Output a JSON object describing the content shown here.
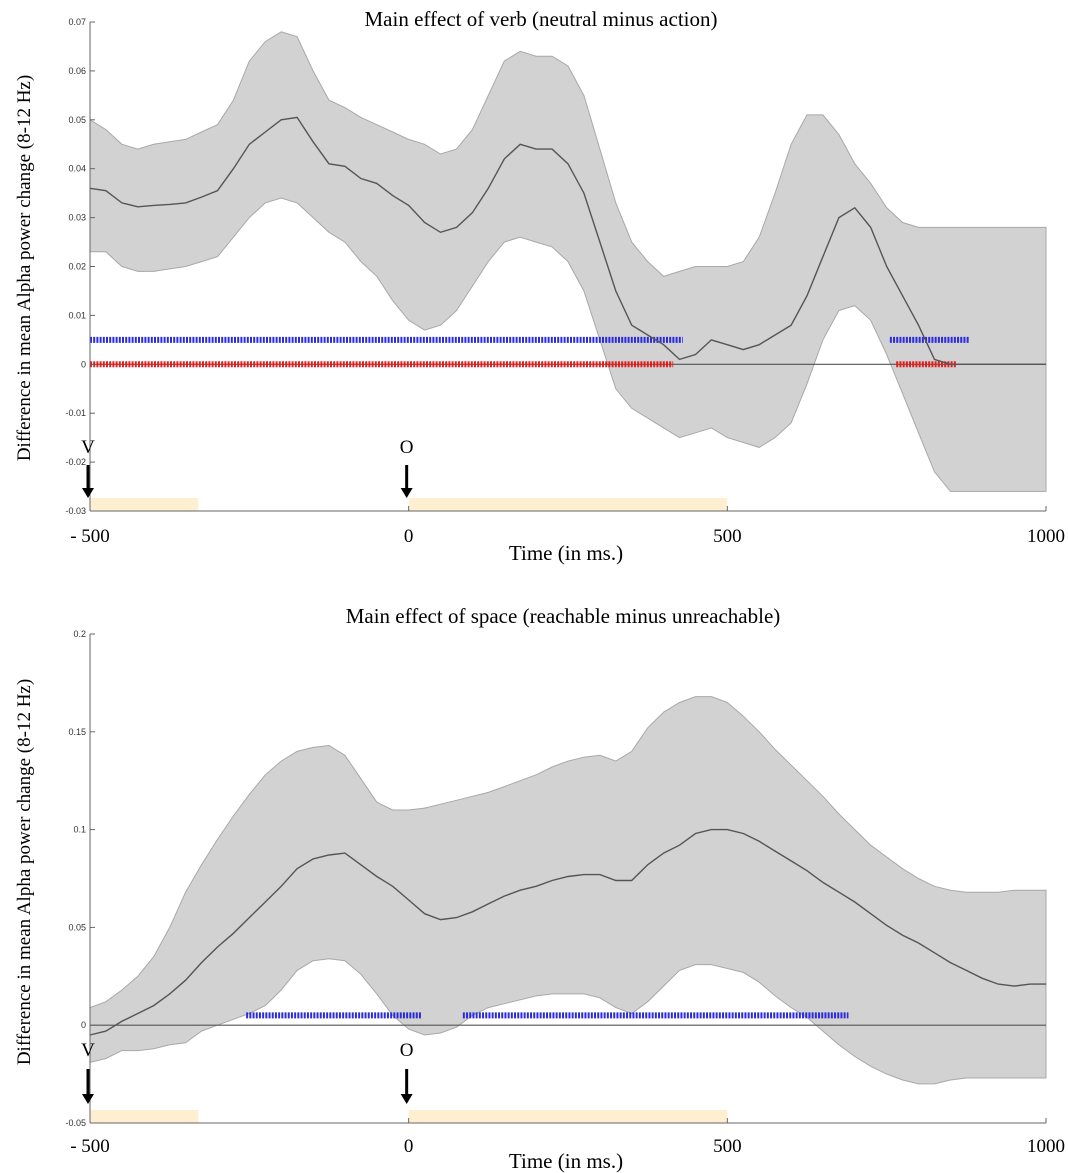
{
  "chart_data": [
    {
      "type": "line",
      "title": "Main effect of verb (neutral minus action)",
      "ylabel": "Difference in mean Alpha power change (8-12 Hz)",
      "xlabel": "Time (in ms.)",
      "xlim": [
        -500,
        1000
      ],
      "ylim": [
        -0.03,
        0.07
      ],
      "xtick_values": [
        -500,
        0,
        500,
        1000
      ],
      "xtick_labels": [
        "- 500",
        "0",
        "500",
        "1000"
      ],
      "ytick_values": [
        -0.03,
        -0.02,
        -0.01,
        0,
        0.01,
        0.02,
        0.03,
        0.04,
        0.05,
        0.06,
        0.07
      ],
      "ytick_labels": [
        "-0.03",
        "-0.02",
        "-0.01",
        "0",
        "0.01",
        "0.02",
        "0.03",
        "0.04",
        "0.05",
        "0.06",
        "0.07"
      ],
      "grid": false,
      "colors": {
        "line": "#555555",
        "band": "#d2d2d2",
        "band_edge": "#a8a8a8",
        "blue": "#2b2bdc",
        "red": "#e21e1e",
        "stimulus": "#fdefcf",
        "zero": "#555555"
      },
      "events": [
        {
          "label": "V",
          "x": -500
        },
        {
          "label": "O",
          "x": 0
        }
      ],
      "stimulus_periods": [
        [
          -500,
          -330
        ],
        [
          0,
          500
        ]
      ],
      "series": [
        {
          "x": [
            -500,
            -475,
            -450,
            -425,
            -400,
            -375,
            -350,
            -325,
            -300,
            -275,
            -250,
            -225,
            -200,
            -175,
            -150,
            -125,
            -100,
            -75,
            -50,
            -25,
            0,
            25,
            50,
            75,
            100,
            125,
            150,
            175,
            200,
            225,
            250,
            275,
            300,
            325,
            350,
            375,
            400,
            425,
            450,
            475,
            500,
            525,
            550,
            575,
            600,
            625,
            650,
            675,
            700,
            725,
            750,
            775,
            800,
            825,
            850,
            875,
            900,
            925,
            950,
            975,
            1000
          ],
          "mean": [
            0.036,
            0.0355,
            0.033,
            0.0322,
            0.0325,
            0.0327,
            0.033,
            0.0342,
            0.0355,
            0.04,
            0.045,
            0.0475,
            0.05,
            0.0505,
            0.0455,
            0.041,
            0.0405,
            0.038,
            0.037,
            0.0345,
            0.0325,
            0.029,
            0.027,
            0.028,
            0.031,
            0.036,
            0.042,
            0.045,
            0.044,
            0.044,
            0.041,
            0.035,
            0.025,
            0.015,
            0.008,
            0.006,
            0.004,
            0.001,
            0.002,
            0.005,
            0.004,
            0.003,
            0.004,
            0.006,
            0.008,
            0.014,
            0.022,
            0.03,
            0.032,
            0.028,
            0.02,
            0.014,
            0.008,
            0.001,
            0.0,
            0.0,
            0.0,
            0.0,
            0.0,
            0.0,
            0.0
          ],
          "upper": [
            0.05,
            0.048,
            0.045,
            0.044,
            0.045,
            0.0455,
            0.046,
            0.0475,
            0.049,
            0.054,
            0.062,
            0.066,
            0.068,
            0.067,
            0.06,
            0.054,
            0.0525,
            0.0505,
            0.049,
            0.0475,
            0.046,
            0.045,
            0.043,
            0.044,
            0.048,
            0.055,
            0.062,
            0.064,
            0.063,
            0.063,
            0.061,
            0.055,
            0.044,
            0.033,
            0.025,
            0.021,
            0.018,
            0.019,
            0.02,
            0.02,
            0.02,
            0.021,
            0.026,
            0.035,
            0.045,
            0.051,
            0.051,
            0.047,
            0.041,
            0.037,
            0.032,
            0.029,
            0.028,
            0.028,
            0.028,
            0.028,
            0.028,
            0.028,
            0.028,
            0.028,
            0.028
          ],
          "lower": [
            0.023,
            0.023,
            0.02,
            0.019,
            0.019,
            0.0195,
            0.02,
            0.021,
            0.022,
            0.026,
            0.03,
            0.033,
            0.034,
            0.033,
            0.03,
            0.027,
            0.025,
            0.021,
            0.018,
            0.013,
            0.009,
            0.007,
            0.008,
            0.011,
            0.016,
            0.021,
            0.025,
            0.026,
            0.025,
            0.024,
            0.021,
            0.015,
            0.005,
            -0.005,
            -0.009,
            -0.011,
            -0.013,
            -0.015,
            -0.014,
            -0.013,
            -0.015,
            -0.016,
            -0.017,
            -0.015,
            -0.012,
            -0.004,
            0.005,
            0.011,
            0.012,
            0.009,
            0.002,
            -0.006,
            -0.014,
            -0.022,
            -0.026,
            -0.026,
            -0.026,
            -0.026,
            -0.026,
            -0.026,
            -0.026
          ]
        }
      ],
      "significance": [
        {
          "color": "blue",
          "y": 0.005,
          "ranges": [
            [
              -500,
              430
            ],
            [
              755,
              880
            ]
          ]
        },
        {
          "color": "red",
          "y": 0.0,
          "ranges": [
            [
              -500,
              415
            ],
            [
              765,
              860
            ]
          ]
        }
      ]
    },
    {
      "type": "line",
      "title": "Main effect of space (reachable minus unreachable)",
      "ylabel": "Difference in mean Alpha power change (8-12 Hz)",
      "xlabel": "Time (in ms.)",
      "xlim": [
        -500,
        1000
      ],
      "ylim": [
        -0.05,
        0.2
      ],
      "xtick_values": [
        -500,
        0,
        500,
        1000
      ],
      "xtick_labels": [
        "- 500",
        "0",
        "500",
        "1000"
      ],
      "ytick_values": [
        -0.05,
        0,
        0.05,
        0.1,
        0.15,
        0.2
      ],
      "ytick_labels": [
        "-0.05",
        "0",
        "0.05",
        "0.1",
        "0.15",
        "0.2"
      ],
      "grid": false,
      "colors": {
        "line": "#555555",
        "band": "#d2d2d2",
        "band_edge": "#a8a8a8",
        "blue": "#2b2bdc",
        "stimulus": "#fdefcf",
        "zero": "#555555"
      },
      "events": [
        {
          "label": "V",
          "x": -500
        },
        {
          "label": "O",
          "x": 0
        }
      ],
      "stimulus_periods": [
        [
          -500,
          -330
        ],
        [
          0,
          500
        ]
      ],
      "series": [
        {
          "x": [
            -500,
            -475,
            -450,
            -425,
            -400,
            -375,
            -350,
            -325,
            -300,
            -275,
            -250,
            -225,
            -200,
            -175,
            -150,
            -125,
            -100,
            -75,
            -50,
            -25,
            0,
            25,
            50,
            75,
            100,
            125,
            150,
            175,
            200,
            225,
            250,
            275,
            300,
            325,
            350,
            375,
            400,
            425,
            450,
            475,
            500,
            525,
            550,
            575,
            600,
            625,
            650,
            675,
            700,
            725,
            750,
            775,
            800,
            825,
            850,
            875,
            900,
            925,
            950,
            975,
            1000
          ],
          "mean": [
            -0.005,
            -0.003,
            0.002,
            0.006,
            0.01,
            0.016,
            0.023,
            0.032,
            0.04,
            0.047,
            0.055,
            0.063,
            0.071,
            0.08,
            0.085,
            0.087,
            0.088,
            0.082,
            0.076,
            0.071,
            0.064,
            0.057,
            0.054,
            0.055,
            0.058,
            0.062,
            0.066,
            0.069,
            0.071,
            0.074,
            0.076,
            0.077,
            0.077,
            0.074,
            0.074,
            0.082,
            0.088,
            0.092,
            0.098,
            0.1,
            0.1,
            0.098,
            0.094,
            0.089,
            0.084,
            0.079,
            0.073,
            0.068,
            0.063,
            0.057,
            0.051,
            0.046,
            0.042,
            0.037,
            0.032,
            0.028,
            0.024,
            0.021,
            0.02,
            0.021,
            0.021
          ],
          "upper": [
            0.009,
            0.012,
            0.018,
            0.025,
            0.035,
            0.05,
            0.068,
            0.082,
            0.095,
            0.107,
            0.118,
            0.128,
            0.135,
            0.14,
            0.142,
            0.143,
            0.138,
            0.126,
            0.114,
            0.11,
            0.11,
            0.111,
            0.113,
            0.115,
            0.117,
            0.119,
            0.122,
            0.125,
            0.128,
            0.132,
            0.135,
            0.137,
            0.138,
            0.135,
            0.14,
            0.152,
            0.16,
            0.165,
            0.168,
            0.168,
            0.165,
            0.158,
            0.15,
            0.141,
            0.133,
            0.125,
            0.117,
            0.108,
            0.1,
            0.092,
            0.086,
            0.08,
            0.075,
            0.071,
            0.069,
            0.068,
            0.068,
            0.068,
            0.069,
            0.069,
            0.069
          ],
          "lower": [
            -0.019,
            -0.017,
            -0.013,
            -0.013,
            -0.012,
            -0.01,
            -0.009,
            -0.003,
            0.0,
            0.003,
            0.006,
            0.01,
            0.018,
            0.028,
            0.033,
            0.034,
            0.033,
            0.026,
            0.016,
            0.005,
            -0.002,
            -0.005,
            -0.004,
            -0.001,
            0.005,
            0.009,
            0.011,
            0.013,
            0.015,
            0.016,
            0.016,
            0.016,
            0.014,
            0.009,
            0.006,
            0.012,
            0.02,
            0.028,
            0.031,
            0.031,
            0.029,
            0.027,
            0.022,
            0.015,
            0.009,
            0.004,
            -0.003,
            -0.01,
            -0.016,
            -0.021,
            -0.025,
            -0.028,
            -0.03,
            -0.03,
            -0.028,
            -0.027,
            -0.027,
            -0.027,
            -0.027,
            -0.027,
            -0.027
          ]
        }
      ],
      "significance": [
        {
          "color": "blue",
          "y": 0.005,
          "ranges": [
            [
              -255,
              20
            ],
            [
              85,
              690
            ]
          ]
        }
      ]
    }
  ]
}
